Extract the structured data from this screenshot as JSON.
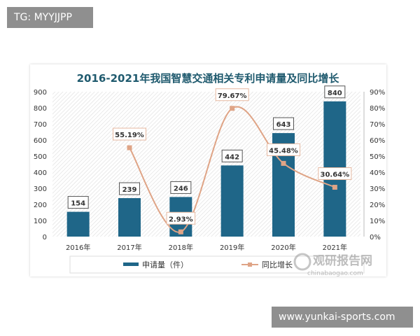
{
  "watermark_top": "TG: MYYJJPP",
  "watermark_bottom": "www.yunkai-sports.com",
  "logo": {
    "name": "观研报告网",
    "domain": "chinabaogao.com"
  },
  "colors": {
    "bar": "#1f6688",
    "line": "#dfa486",
    "title": "#1f5a6e"
  },
  "chart_data": {
    "type": "bar+line",
    "title": "2016-2021年我国智慧交通相关专利申请量及同比增长",
    "categories": [
      "2016年",
      "2017年",
      "2018年",
      "2019年",
      "2020年",
      "2021年"
    ],
    "series": [
      {
        "name": "申请量（件）",
        "type": "bar",
        "axis": "left",
        "values": [
          154,
          239,
          246,
          442,
          643,
          840
        ],
        "labels": [
          "154",
          "239",
          "246",
          "442",
          "643",
          "840"
        ]
      },
      {
        "name": "同比增长",
        "type": "line",
        "axis": "right",
        "values": [
          null,
          55.19,
          2.93,
          79.67,
          45.48,
          30.64
        ],
        "labels": [
          "",
          "55.19%",
          "2.93%",
          "79.67%",
          "45.48%",
          "30.64%"
        ]
      }
    ],
    "left_axis": {
      "ylim": [
        0,
        900
      ],
      "ticks": [
        "0",
        "100",
        "200",
        "300",
        "400",
        "500",
        "600",
        "700",
        "800",
        "900"
      ]
    },
    "right_axis": {
      "ylim": [
        0,
        90
      ],
      "ticks": [
        "0%",
        "10%",
        "20%",
        "30%",
        "40%",
        "50%",
        "60%",
        "70%",
        "80%",
        "90%"
      ]
    },
    "legend": "bottom",
    "grid": false
  }
}
